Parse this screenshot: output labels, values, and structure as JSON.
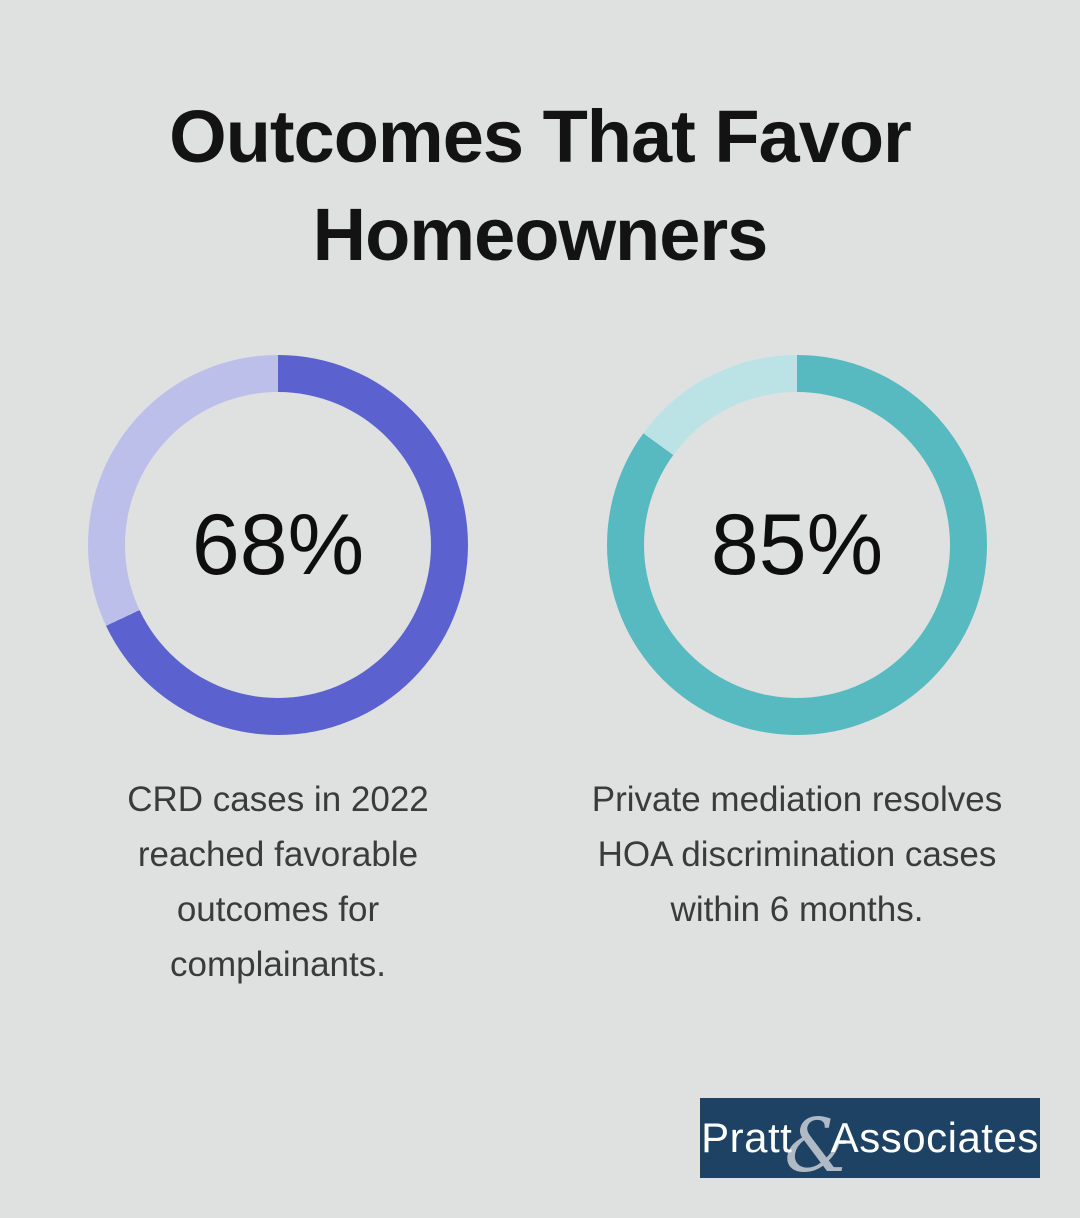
{
  "background_color": "#dfe0e0",
  "title": "Outcomes That Favor Homeowners",
  "chart_data": [
    {
      "type": "pie",
      "subtype": "donut",
      "center_label": "68%",
      "percent": 68,
      "start_angle_deg": 0,
      "direction": "clockwise",
      "slices": [
        {
          "label": "favorable outcomes",
          "value": 68,
          "color": "#5b61cf"
        },
        {
          "label": "remainder",
          "value": 32,
          "color": "#bdbfeb"
        }
      ],
      "caption": "CRD cases in 2022 reached favorable outcomes for complainants."
    },
    {
      "type": "pie",
      "subtype": "donut",
      "center_label": "85%",
      "percent": 85,
      "start_angle_deg": 0,
      "direction": "clockwise",
      "slices": [
        {
          "label": "resolved within 6 months",
          "value": 85,
          "color": "#57bac0"
        },
        {
          "label": "remainder",
          "value": 15,
          "color": "#bbe3e6"
        }
      ],
      "caption": "Private mediation resolves HOA discrimination cases within 6 months."
    }
  ],
  "logo": {
    "bg_color": "#1e4263",
    "text_primary": "Pratt",
    "ampersand": "&",
    "text_secondary": "Associates"
  }
}
